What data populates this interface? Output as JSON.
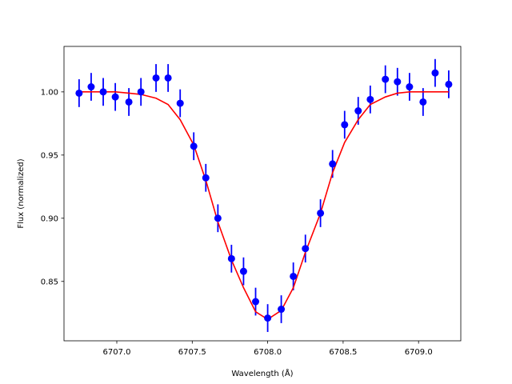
{
  "chart_data": {
    "type": "scatter",
    "title": "",
    "xlabel": "Wavelength (Å)",
    "ylabel": "Flux (normalized)",
    "xlim": [
      6706.65,
      6709.28
    ],
    "ylim": [
      0.803,
      1.036
    ],
    "grid": false,
    "legend": "none",
    "x_ticks": [
      6707.0,
      6707.5,
      6708.0,
      6708.5,
      6709.0
    ],
    "x_tick_labels": [
      "6707.0",
      "6707.5",
      "6708.0",
      "6708.5",
      "6709.0"
    ],
    "y_ticks": [
      0.85,
      0.9,
      0.95,
      1.0
    ],
    "y_tick_labels": [
      "0.85",
      "0.90",
      "0.95",
      "1.00"
    ],
    "series": [
      {
        "kind": "errorbar",
        "color": "#0000ff",
        "x": [
          6706.75,
          6706.83,
          6706.91,
          6706.99,
          6707.08,
          6707.16,
          6707.26,
          6707.34,
          6707.42,
          6707.51,
          6707.59,
          6707.67,
          6707.76,
          6707.84,
          6707.92,
          6708.0,
          6708.09,
          6708.17,
          6708.25,
          6708.35,
          6708.43,
          6708.51,
          6708.6,
          6708.68,
          6708.78,
          6708.86,
          6708.94,
          6709.03,
          6709.11,
          6709.2
        ],
        "y": [
          0.999,
          1.004,
          1.0,
          0.996,
          0.992,
          1.0,
          1.011,
          1.011,
          0.991,
          0.957,
          0.932,
          0.9,
          0.868,
          0.858,
          0.834,
          0.821,
          0.828,
          0.854,
          0.876,
          0.904,
          0.943,
          0.974,
          0.985,
          0.994,
          1.01,
          1.008,
          1.004,
          0.992,
          1.015,
          1.006
        ],
        "yerr": 0.011
      },
      {
        "kind": "line",
        "color": "#ff0000",
        "x": [
          6706.75,
          6706.83,
          6706.91,
          6706.99,
          6707.08,
          6707.16,
          6707.26,
          6707.34,
          6707.42,
          6707.51,
          6707.59,
          6707.67,
          6707.76,
          6707.84,
          6707.92,
          6708.0,
          6708.09,
          6708.17,
          6708.25,
          6708.35,
          6708.43,
          6708.51,
          6708.6,
          6708.68,
          6708.78,
          6708.86,
          6708.94,
          6709.03,
          6709.11,
          6709.2
        ],
        "y": [
          1.0,
          1.0,
          1.0,
          1.0,
          0.999,
          0.998,
          0.995,
          0.99,
          0.978,
          0.958,
          0.93,
          0.897,
          0.867,
          0.845,
          0.826,
          0.82,
          0.827,
          0.845,
          0.873,
          0.904,
          0.936,
          0.96,
          0.978,
          0.99,
          0.996,
          0.999,
          1.0,
          1.0,
          1.0,
          1.0
        ]
      }
    ]
  }
}
